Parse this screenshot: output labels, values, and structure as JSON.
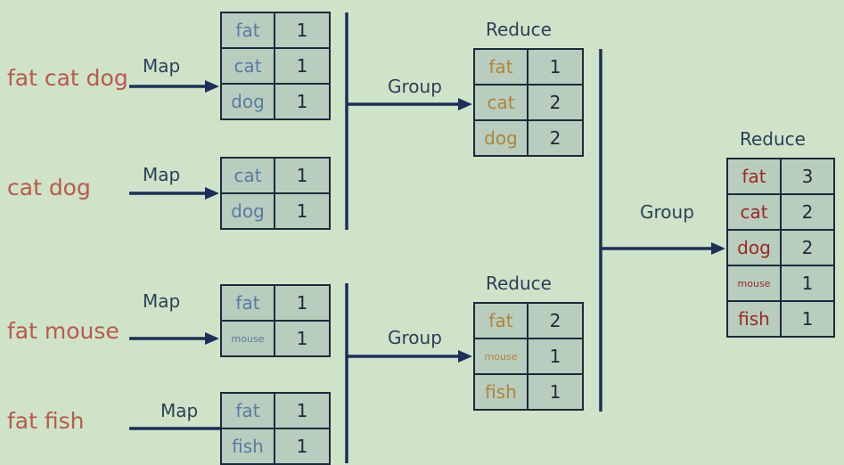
{
  "inputs": [
    {
      "id": "input-1",
      "text": "fat cat dog"
    },
    {
      "id": "input-2",
      "text": "cat dog"
    },
    {
      "id": "input-3",
      "text": "fat mouse"
    },
    {
      "id": "input-4",
      "text": "fat fish"
    }
  ],
  "map_label": "Map",
  "group_label": "Group",
  "reduce_label": "Reduce",
  "map_tables": [
    [
      {
        "k": "fat",
        "v": "1"
      },
      {
        "k": "cat",
        "v": "1"
      },
      {
        "k": "dog",
        "v": "1"
      }
    ],
    [
      {
        "k": "cat",
        "v": "1"
      },
      {
        "k": "dog",
        "v": "1"
      }
    ],
    [
      {
        "k": "fat",
        "v": "1"
      },
      {
        "k": "mouse",
        "v": "1"
      }
    ],
    [
      {
        "k": "fat",
        "v": "1"
      },
      {
        "k": "fish",
        "v": "1"
      }
    ]
  ],
  "reduce_tables": [
    [
      {
        "k": "fat",
        "v": "1"
      },
      {
        "k": "cat",
        "v": "2"
      },
      {
        "k": "dog",
        "v": "2"
      }
    ],
    [
      {
        "k": "fat",
        "v": "2"
      },
      {
        "k": "mouse",
        "v": "1"
      },
      {
        "k": "fish",
        "v": "1"
      }
    ]
  ],
  "final_table": [
    {
      "k": "fat",
      "v": "3"
    },
    {
      "k": "cat",
      "v": "2"
    },
    {
      "k": "dog",
      "v": "2"
    },
    {
      "k": "mouse",
      "v": "1"
    },
    {
      "k": "fish",
      "v": "1"
    }
  ],
  "colors": {
    "background": "#cfe3c9",
    "line": "#1d2e5a",
    "input_text": "#b85a4c",
    "map_key": "#5a7aa0",
    "reduce_key": "#b0843a",
    "final_key": "#9a2a22"
  }
}
